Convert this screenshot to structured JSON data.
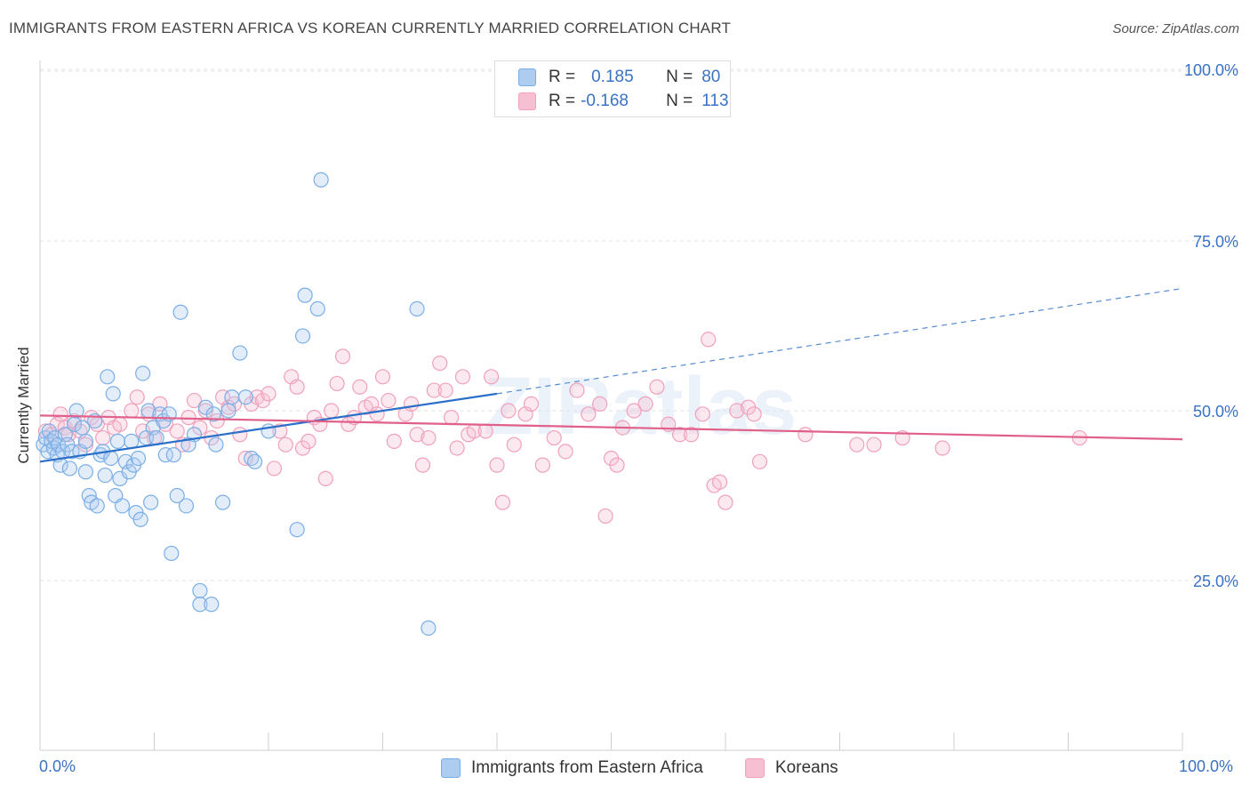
{
  "title": "IMMIGRANTS FROM EASTERN AFRICA VS KOREAN CURRENTLY MARRIED CORRELATION CHART",
  "source": "Source: ZipAtlas.com",
  "watermark": "ZIPatlas",
  "legend": {
    "rows": [
      {
        "r_label": "R =",
        "r_value": "0.185",
        "n_label": "N =",
        "n_value": "80",
        "color": "#aecbf0"
      },
      {
        "r_label": "R =",
        "r_value": "-0.168",
        "n_label": "N =",
        "n_value": "113",
        "color": "#f6bfd2"
      }
    ]
  },
  "bottom_legend": [
    {
      "label": "Immigrants from Eastern Africa",
      "color": "#aecbf0"
    },
    {
      "label": "Koreans",
      "color": "#f6bfd2"
    }
  ],
  "colors": {
    "blue_point": "#7aaee6",
    "blue_line": "#2b6fc9",
    "pink_point": "#f0a0bc",
    "pink_line": "#e0608a",
    "axis_text": "#3a72c4"
  },
  "chart_data": {
    "type": "scatter",
    "title": "IMMIGRANTS FROM EASTERN AFRICA VS KOREAN CURRENTLY MARRIED CORRELATION CHART",
    "xlabel": "",
    "ylabel": "Currently Married",
    "xlim": [
      0,
      100
    ],
    "ylim": [
      0,
      100
    ],
    "x_tick_labels": [
      "0.0%",
      "100.0%"
    ],
    "y_ticks": [
      25,
      50,
      75,
      100
    ],
    "y_tick_labels": [
      "25.0%",
      "50.0%",
      "75.0%",
      "100.0%"
    ],
    "grid": true,
    "legend_position": "top-center",
    "series": [
      {
        "name": "Immigrants from Eastern Africa",
        "color": "#7aaee6",
        "trend": {
          "x0": 0,
          "y0": 42.5,
          "x1": 40,
          "y1": 52.5,
          "dashed_to_x": 100,
          "dashed_to_y": 68
        },
        "points": [
          [
            0.3,
            45
          ],
          [
            0.5,
            46
          ],
          [
            0.7,
            44
          ],
          [
            0.8,
            47
          ],
          [
            1,
            45.5
          ],
          [
            1.2,
            44.5
          ],
          [
            1.3,
            46
          ],
          [
            1.5,
            43.5
          ],
          [
            1.6,
            45
          ],
          [
            1.8,
            42
          ],
          [
            2,
            44
          ],
          [
            2.2,
            46.5
          ],
          [
            2.4,
            45
          ],
          [
            2.6,
            41.5
          ],
          [
            2.8,
            44
          ],
          [
            3,
            48
          ],
          [
            3.2,
            50
          ],
          [
            3.5,
            44
          ],
          [
            3.7,
            47.5
          ],
          [
            4,
            45.5
          ],
          [
            4,
            41
          ],
          [
            4.3,
            37.5
          ],
          [
            4.5,
            36.5
          ],
          [
            4.8,
            48.5
          ],
          [
            5,
            36
          ],
          [
            5.3,
            43.5
          ],
          [
            5.5,
            44
          ],
          [
            5.7,
            40.5
          ],
          [
            5.9,
            55
          ],
          [
            6.2,
            43
          ],
          [
            6.4,
            52.5
          ],
          [
            6.6,
            37.5
          ],
          [
            6.8,
            45.5
          ],
          [
            7,
            40
          ],
          [
            7.2,
            36
          ],
          [
            7.5,
            42.5
          ],
          [
            7.8,
            41
          ],
          [
            8,
            45.5
          ],
          [
            8.2,
            42
          ],
          [
            8.4,
            35
          ],
          [
            8.6,
            43
          ],
          [
            8.8,
            34
          ],
          [
            9,
            55.5
          ],
          [
            9.3,
            46
          ],
          [
            9.5,
            50
          ],
          [
            9.7,
            36.5
          ],
          [
            9.9,
            47.5
          ],
          [
            10.2,
            46
          ],
          [
            10.5,
            49.5
          ],
          [
            10.8,
            48.5
          ],
          [
            11,
            43.5
          ],
          [
            11.3,
            49.5
          ],
          [
            11.5,
            29
          ],
          [
            11.7,
            43.5
          ],
          [
            12,
            37.5
          ],
          [
            12.3,
            64.5
          ],
          [
            12.8,
            36
          ],
          [
            13.5,
            46.5
          ],
          [
            14,
            23.5
          ],
          [
            14,
            21.5
          ],
          [
            14.5,
            50.5
          ],
          [
            15,
            21.5
          ],
          [
            15.2,
            49.5
          ],
          [
            15.4,
            45
          ],
          [
            16,
            36.5
          ],
          [
            16.5,
            50
          ],
          [
            16.8,
            52
          ],
          [
            17.5,
            58.5
          ],
          [
            18,
            52
          ],
          [
            18.5,
            43
          ],
          [
            18.8,
            42.5
          ],
          [
            22.5,
            32.5
          ],
          [
            23,
            61
          ],
          [
            23.2,
            67
          ],
          [
            24.3,
            65
          ],
          [
            24.6,
            84
          ],
          [
            33,
            65
          ],
          [
            34,
            18
          ],
          [
            20,
            47
          ],
          [
            13,
            45
          ]
        ]
      },
      {
        "name": "Koreans",
        "color": "#f0a0bc",
        "trend": {
          "x0": 0,
          "y0": 49.3,
          "x1": 100,
          "y1": 45.8
        },
        "points": [
          [
            0.5,
            47
          ],
          [
            1,
            46.5
          ],
          [
            1.5,
            48
          ],
          [
            1.8,
            49.5
          ],
          [
            2.2,
            47.5
          ],
          [
            2.5,
            46.5
          ],
          [
            3,
            48.5
          ],
          [
            3.5,
            47
          ],
          [
            4,
            45
          ],
          [
            4.5,
            49
          ],
          [
            5,
            48
          ],
          [
            5.5,
            46
          ],
          [
            6,
            49
          ],
          [
            6.5,
            47.5
          ],
          [
            7,
            48
          ],
          [
            8,
            50
          ],
          [
            8.5,
            52
          ],
          [
            9,
            47
          ],
          [
            9.5,
            49.5
          ],
          [
            10,
            46
          ],
          [
            10.5,
            51
          ],
          [
            11,
            48
          ],
          [
            12,
            47
          ],
          [
            12.5,
            45
          ],
          [
            13,
            49
          ],
          [
            13.5,
            51.5
          ],
          [
            14,
            47.5
          ],
          [
            14.5,
            50
          ],
          [
            15,
            46
          ],
          [
            15.5,
            48.5
          ],
          [
            16,
            52
          ],
          [
            16.5,
            50.5
          ],
          [
            17,
            51
          ],
          [
            17.5,
            46.5
          ],
          [
            18,
            43
          ],
          [
            18.5,
            51
          ],
          [
            19,
            52
          ],
          [
            19.5,
            51.5
          ],
          [
            20,
            52.5
          ],
          [
            20.5,
            41.5
          ],
          [
            21,
            47
          ],
          [
            21.5,
            45
          ],
          [
            22,
            55
          ],
          [
            22.5,
            53.5
          ],
          [
            23,
            44.5
          ],
          [
            23.5,
            45.5
          ],
          [
            24,
            49
          ],
          [
            24.5,
            48
          ],
          [
            25,
            40
          ],
          [
            25.5,
            50
          ],
          [
            26,
            54
          ],
          [
            26.5,
            58
          ],
          [
            27,
            48
          ],
          [
            27.5,
            49
          ],
          [
            28,
            53.5
          ],
          [
            28.5,
            50.5
          ],
          [
            29,
            51
          ],
          [
            29.5,
            49.5
          ],
          [
            30,
            55
          ],
          [
            30.5,
            51.5
          ],
          [
            31,
            45.5
          ],
          [
            32,
            49.5
          ],
          [
            32.5,
            51
          ],
          [
            33,
            46.5
          ],
          [
            33.5,
            42
          ],
          [
            34,
            46
          ],
          [
            34.5,
            53
          ],
          [
            35,
            57
          ],
          [
            35.5,
            53
          ],
          [
            36,
            49
          ],
          [
            36.5,
            44.5
          ],
          [
            37,
            55
          ],
          [
            37.5,
            46.5
          ],
          [
            38,
            47
          ],
          [
            39,
            47
          ],
          [
            39.5,
            55
          ],
          [
            40,
            42
          ],
          [
            40.5,
            36.5
          ],
          [
            41,
            50
          ],
          [
            41.5,
            45
          ],
          [
            42.5,
            49.5
          ],
          [
            43,
            51
          ],
          [
            44,
            42
          ],
          [
            45,
            46
          ],
          [
            46,
            44
          ],
          [
            47,
            53
          ],
          [
            48,
            49.5
          ],
          [
            49,
            51
          ],
          [
            49.5,
            34.5
          ],
          [
            50,
            43
          ],
          [
            50.5,
            42
          ],
          [
            51,
            47.5
          ],
          [
            52,
            50
          ],
          [
            53,
            51
          ],
          [
            54,
            53.5
          ],
          [
            55,
            48
          ],
          [
            56,
            46.5
          ],
          [
            57,
            46.5
          ],
          [
            58,
            49.5
          ],
          [
            58.5,
            60.5
          ],
          [
            59,
            39
          ],
          [
            59.5,
            39.5
          ],
          [
            60,
            36.5
          ],
          [
            61,
            50
          ],
          [
            62,
            50.5
          ],
          [
            62.5,
            49.5
          ],
          [
            63,
            42.5
          ],
          [
            67,
            46.5
          ],
          [
            71.5,
            45
          ],
          [
            73,
            45
          ],
          [
            75.5,
            46
          ],
          [
            79,
            44.5
          ],
          [
            91,
            46
          ]
        ]
      }
    ]
  }
}
